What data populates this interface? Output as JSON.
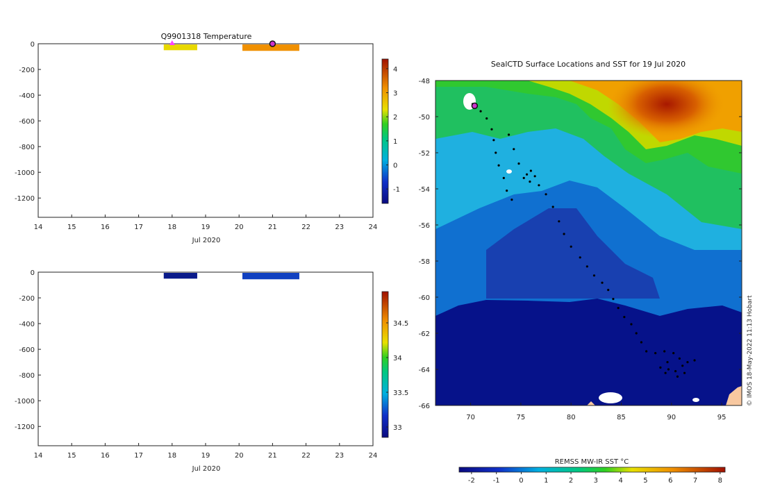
{
  "chart_data": [
    {
      "type": "bar",
      "title": "Q9901318  Temperature",
      "xlabel": "Jul 2020",
      "ylabel": "",
      "xlim": [
        14,
        24
      ],
      "ylim": [
        -1350,
        0
      ],
      "x_ticks": [
        "14",
        "15",
        "16",
        "17",
        "18",
        "19",
        "20",
        "21",
        "22",
        "23",
        "24"
      ],
      "y_ticks": [
        "0",
        "-200",
        "-400",
        "-600",
        "-800",
        "-1000",
        "-1200"
      ],
      "bars": [
        {
          "x_start": 17.75,
          "x_end": 18.75,
          "depth_top": 0,
          "depth_bottom": -45,
          "value": 2.3,
          "color": "#e8d800"
        },
        {
          "x_start": 20.1,
          "x_end": 21.8,
          "depth_top": 0,
          "depth_bottom": -50,
          "value": 3.0,
          "color": "#f09000"
        }
      ],
      "markers": [
        {
          "x": 18.0,
          "y": 0,
          "shape": "triangle",
          "color": "#ff44ff"
        },
        {
          "x": 21.0,
          "y": 0,
          "shape": "circle",
          "color": "#cc33cc"
        }
      ],
      "colorbar": {
        "ticks": [
          "4",
          "3",
          "2",
          "1",
          "0",
          "-1"
        ],
        "min": -1.6,
        "max": 4.4
      }
    },
    {
      "type": "bar",
      "title": "",
      "xlabel": "Jul 2020",
      "ylabel": "",
      "xlim": [
        14,
        24
      ],
      "ylim": [
        -1350,
        0
      ],
      "x_ticks": [
        "14",
        "15",
        "16",
        "17",
        "18",
        "19",
        "20",
        "21",
        "22",
        "23",
        "24"
      ],
      "y_ticks": [
        "0",
        "-200",
        "-400",
        "-600",
        "-800",
        "-1000",
        "-1200"
      ],
      "bars": [
        {
          "x_start": 17.75,
          "x_end": 18.75,
          "depth_top": 0,
          "depth_bottom": -45,
          "value": 32.85,
          "color": "#0a1a8a"
        },
        {
          "x_start": 20.1,
          "x_end": 21.8,
          "depth_top": 0,
          "depth_bottom": -50,
          "value": 33.0,
          "color": "#1040c0"
        }
      ],
      "colorbar": {
        "ticks": [
          "34.5",
          "34",
          "33.5",
          "33"
        ],
        "min": 32.85,
        "max": 34.95
      }
    },
    {
      "type": "heatmap",
      "title": "SealCTD Surface Locations and SST for 19 Jul 2020",
      "xlabel": "",
      "ylabel": "",
      "xlim": [
        66.5,
        97
      ],
      "ylim": [
        -66,
        -48
      ],
      "x_ticks": [
        "70",
        "75",
        "80",
        "85",
        "90",
        "95"
      ],
      "y_ticks": [
        "-48",
        "-50",
        "-52",
        "-54",
        "-56",
        "-58",
        "-60",
        "-62",
        "-64",
        "-66"
      ],
      "colorbar": {
        "label": "REMSS MW-IR SST °C",
        "ticks": [
          "-2",
          "-1",
          "0",
          "1",
          "2",
          "3",
          "4",
          "5",
          "6",
          "7",
          "8"
        ],
        "min": -2.5,
        "max": 8.2
      },
      "track_points": [
        [
          70.2,
          -49.3
        ],
        [
          71.0,
          -49.7
        ],
        [
          71.6,
          -50.1
        ],
        [
          72.1,
          -50.7
        ],
        [
          72.3,
          -51.3
        ],
        [
          72.5,
          -52.0
        ],
        [
          72.8,
          -52.7
        ],
        [
          73.3,
          -53.4
        ],
        [
          73.6,
          -54.1
        ],
        [
          74.1,
          -54.6
        ],
        [
          73.8,
          -51.0
        ],
        [
          74.3,
          -51.8
        ],
        [
          74.8,
          -52.6
        ],
        [
          75.3,
          -53.4
        ],
        [
          75.6,
          -53.2
        ],
        [
          76.0,
          -53.0
        ],
        [
          76.4,
          -53.3
        ],
        [
          75.9,
          -53.6
        ],
        [
          76.8,
          -53.8
        ],
        [
          77.5,
          -54.3
        ],
        [
          78.2,
          -55.0
        ],
        [
          78.8,
          -55.8
        ],
        [
          79.3,
          -56.5
        ],
        [
          80.0,
          -57.2
        ],
        [
          80.9,
          -57.8
        ],
        [
          81.6,
          -58.3
        ],
        [
          82.3,
          -58.8
        ],
        [
          83.1,
          -59.2
        ],
        [
          83.7,
          -59.6
        ],
        [
          84.2,
          -60.1
        ],
        [
          84.7,
          -60.6
        ],
        [
          85.3,
          -61.1
        ],
        [
          86.0,
          -61.5
        ],
        [
          86.5,
          -62.0
        ],
        [
          87.0,
          -62.5
        ],
        [
          87.5,
          -63.0
        ],
        [
          88.4,
          -63.1
        ],
        [
          89.3,
          -63.0
        ],
        [
          90.2,
          -63.1
        ],
        [
          90.8,
          -63.4
        ],
        [
          89.6,
          -63.6
        ],
        [
          88.9,
          -63.9
        ],
        [
          89.7,
          -64.0
        ],
        [
          90.4,
          -64.1
        ],
        [
          91.1,
          -63.8
        ],
        [
          91.6,
          -63.6
        ],
        [
          92.3,
          -63.5
        ],
        [
          91.3,
          -64.2
        ],
        [
          90.6,
          -64.4
        ],
        [
          89.4,
          -64.2
        ]
      ],
      "markers": [
        {
          "lon": 70.4,
          "lat": -49.4,
          "shape": "circle",
          "color": "#cc33cc"
        }
      ]
    }
  ],
  "watermark": "© IMOS 18-May-2022 11:13 Hobart"
}
